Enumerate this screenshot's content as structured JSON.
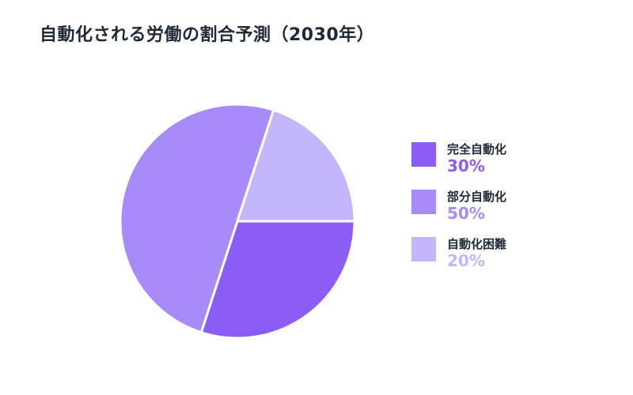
{
  "chart_data": {
    "type": "pie",
    "title": "自動化される労働の割合予測（2030年）",
    "categories": [
      "完全自動化",
      "部分自動化",
      "自動化困難"
    ],
    "values": [
      30,
      50,
      20
    ],
    "value_labels": [
      "30%",
      "50%",
      "20%"
    ],
    "colors": [
      "#8b5cf6",
      "#a78bfa",
      "#c4b5fd"
    ],
    "legend_position": "right"
  }
}
